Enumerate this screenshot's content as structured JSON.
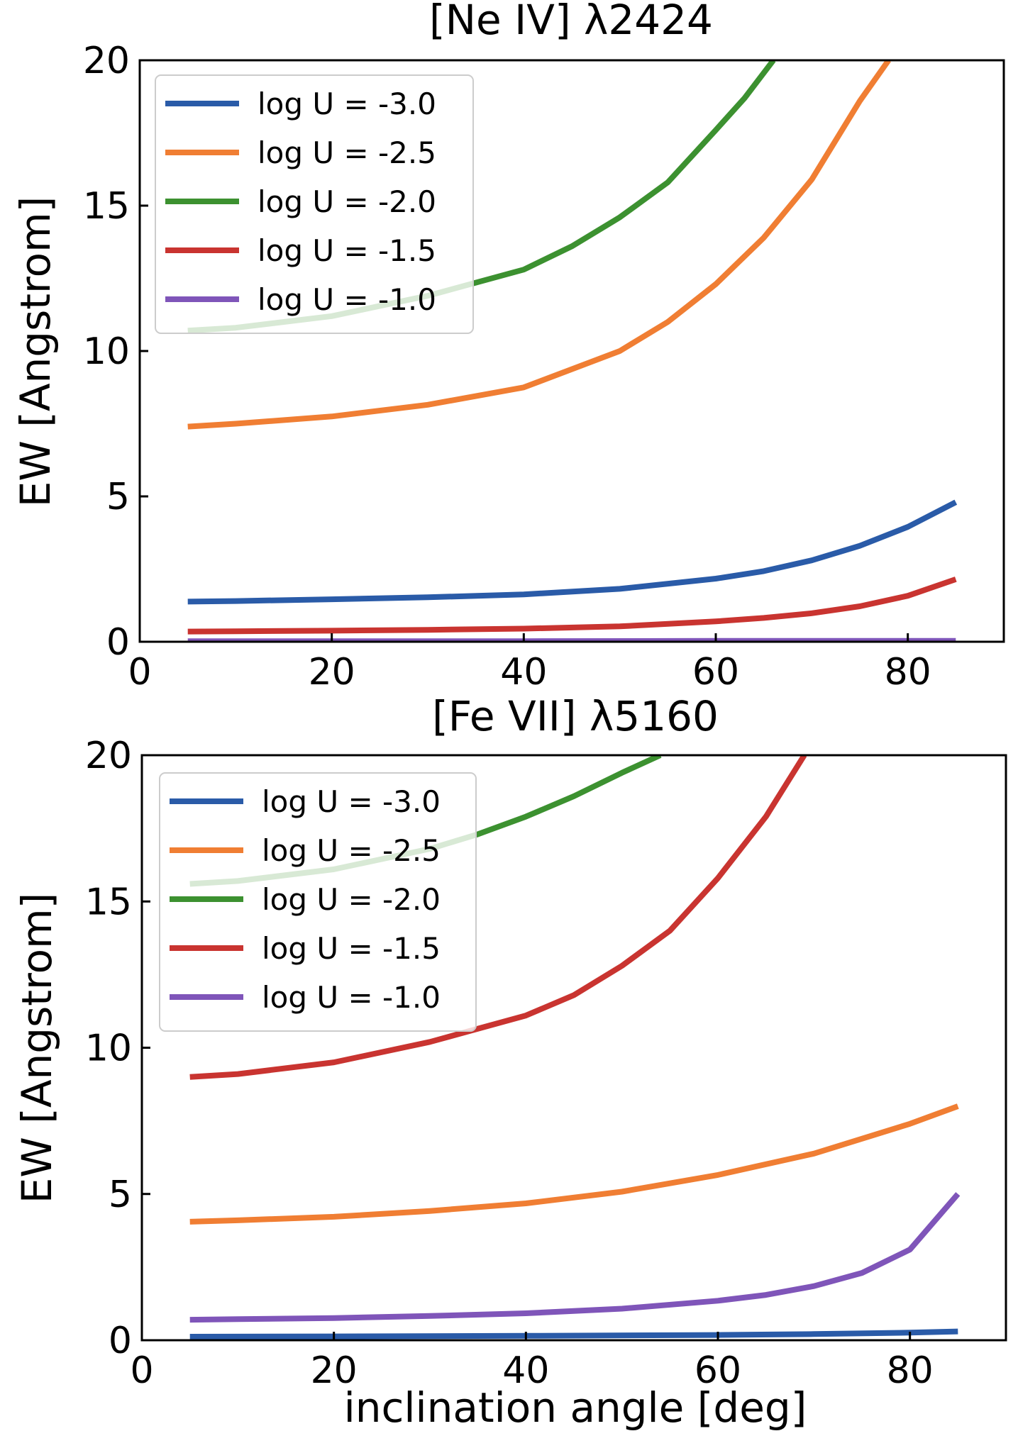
{
  "figure": {
    "xlabel": "inclination angle [deg]"
  },
  "chart_data": [
    {
      "type": "line",
      "title": "[Ne IV] λ2424",
      "xlabel": "",
      "ylabel": "EW [Angstrom]",
      "xlim": [
        0,
        90
      ],
      "ylim": [
        0,
        20
      ],
      "xticks": [
        0,
        20,
        40,
        60,
        80
      ],
      "yticks": [
        0,
        5,
        10,
        15,
        20
      ],
      "legend_position": "top-left",
      "series": [
        {
          "name": "log U = -3.0",
          "color": "#2a5ba8",
          "x": [
            5,
            10,
            20,
            30,
            40,
            50,
            60,
            65,
            70,
            75,
            80,
            85
          ],
          "y": [
            1.38,
            1.4,
            1.46,
            1.53,
            1.63,
            1.82,
            2.17,
            2.43,
            2.8,
            3.3,
            3.95,
            4.8
          ]
        },
        {
          "name": "log U = -2.5",
          "color": "#f07e33",
          "x": [
            5,
            10,
            20,
            30,
            40,
            50,
            55,
            60,
            65,
            70,
            75,
            78
          ],
          "y": [
            7.4,
            7.5,
            7.75,
            8.15,
            8.75,
            10.0,
            11.0,
            12.3,
            13.9,
            15.9,
            18.6,
            20.0
          ]
        },
        {
          "name": "log U = -2.0",
          "color": "#3c9130",
          "x": [
            5,
            10,
            20,
            30,
            40,
            45,
            50,
            55,
            60,
            63,
            66
          ],
          "y": [
            10.7,
            10.8,
            11.2,
            11.9,
            12.8,
            13.6,
            14.6,
            15.8,
            17.6,
            18.7,
            20.0
          ]
        },
        {
          "name": "log U = -1.5",
          "color": "#c93430",
          "x": [
            5,
            10,
            20,
            30,
            40,
            50,
            60,
            65,
            70,
            75,
            80,
            85
          ],
          "y": [
            0.35,
            0.36,
            0.38,
            0.41,
            0.45,
            0.53,
            0.7,
            0.82,
            0.98,
            1.22,
            1.58,
            2.15
          ]
        },
        {
          "name": "log U = -1.0",
          "color": "#7f55b9",
          "x": [
            5,
            20,
            40,
            60,
            80,
            85
          ],
          "y": [
            0.02,
            0.02,
            0.02,
            0.03,
            0.03,
            0.03
          ]
        }
      ]
    },
    {
      "type": "line",
      "title": "[Fe VII] λ5160",
      "xlabel": "inclination angle [deg]",
      "ylabel": "EW [Angstrom]",
      "xlim": [
        0,
        90
      ],
      "ylim": [
        0,
        20
      ],
      "xticks": [
        0,
        20,
        40,
        60,
        80
      ],
      "yticks": [
        0,
        5,
        10,
        15,
        20
      ],
      "legend_position": "top-left",
      "series": [
        {
          "name": "log U = -3.0",
          "color": "#2a5ba8",
          "x": [
            5,
            20,
            40,
            60,
            70,
            80,
            85
          ],
          "y": [
            0.12,
            0.13,
            0.15,
            0.18,
            0.21,
            0.26,
            0.3
          ]
        },
        {
          "name": "log U = -2.5",
          "color": "#f07e33",
          "x": [
            5,
            10,
            20,
            30,
            40,
            50,
            60,
            70,
            80,
            85
          ],
          "y": [
            4.05,
            4.1,
            4.22,
            4.42,
            4.68,
            5.08,
            5.65,
            6.38,
            7.4,
            8.0
          ]
        },
        {
          "name": "log U = -2.0",
          "color": "#3c9130",
          "x": [
            5,
            10,
            20,
            30,
            35,
            40,
            45,
            50,
            54
          ],
          "y": [
            15.6,
            15.7,
            16.1,
            16.8,
            17.3,
            17.9,
            18.6,
            19.4,
            20.0
          ]
        },
        {
          "name": "log U = -1.5",
          "color": "#c93430",
          "x": [
            5,
            10,
            20,
            30,
            40,
            45,
            50,
            55,
            60,
            65,
            69
          ],
          "y": [
            9.0,
            9.1,
            9.5,
            10.2,
            11.1,
            11.8,
            12.8,
            14.0,
            15.8,
            17.9,
            20.0
          ]
        },
        {
          "name": "log U = -1.0",
          "color": "#7f55b9",
          "x": [
            5,
            10,
            20,
            30,
            40,
            50,
            60,
            65,
            70,
            75,
            80,
            85
          ],
          "y": [
            0.7,
            0.72,
            0.76,
            0.83,
            0.92,
            1.08,
            1.35,
            1.55,
            1.85,
            2.3,
            3.1,
            5.0
          ]
        }
      ]
    }
  ]
}
